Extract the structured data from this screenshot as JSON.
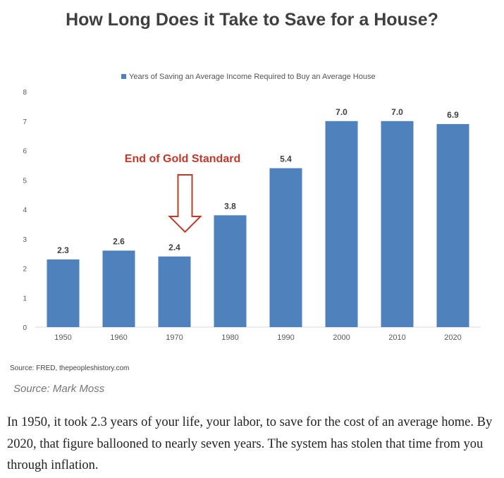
{
  "page": {
    "title": "How Long Does it Take to Save for a House?",
    "source_line": "Source: FRED, thepeopleshistory.com",
    "source_credit": "Source: Mark Moss",
    "paragraph": "In 1950, it took 2.3 years of your life, your labor, to save for the cost of an average home. By 2020, that figure ballooned to nearly seven years. The system has stolen that time from you through inflation."
  },
  "chart_data": {
    "type": "bar",
    "title": "How Long Does it Take to Save for a House?",
    "xlabel": "",
    "ylabel": "",
    "categories": [
      "1950",
      "1960",
      "1970",
      "1980",
      "1990",
      "2000",
      "2010",
      "2020"
    ],
    "series": [
      {
        "name": "Years of Saving an Average Income Required to Buy an Average House",
        "values": [
          2.3,
          2.6,
          2.4,
          3.8,
          5.4,
          7.0,
          7.0,
          6.9
        ],
        "labels": [
          "2.3",
          "2.6",
          "2.4",
          "3.8",
          "5.4",
          "7.0",
          "7.0",
          "6.9"
        ]
      }
    ],
    "ylim": [
      0,
      8
    ],
    "yticks": [
      "0",
      "1",
      "2",
      "3",
      "4",
      "5",
      "6",
      "7",
      "8"
    ],
    "grid": false,
    "legend": "top-center",
    "annotation": {
      "text": "End of Gold Standard",
      "category": "1970"
    },
    "colors": {
      "bar": "#4f81bd",
      "annotation": "#c0392b"
    }
  }
}
